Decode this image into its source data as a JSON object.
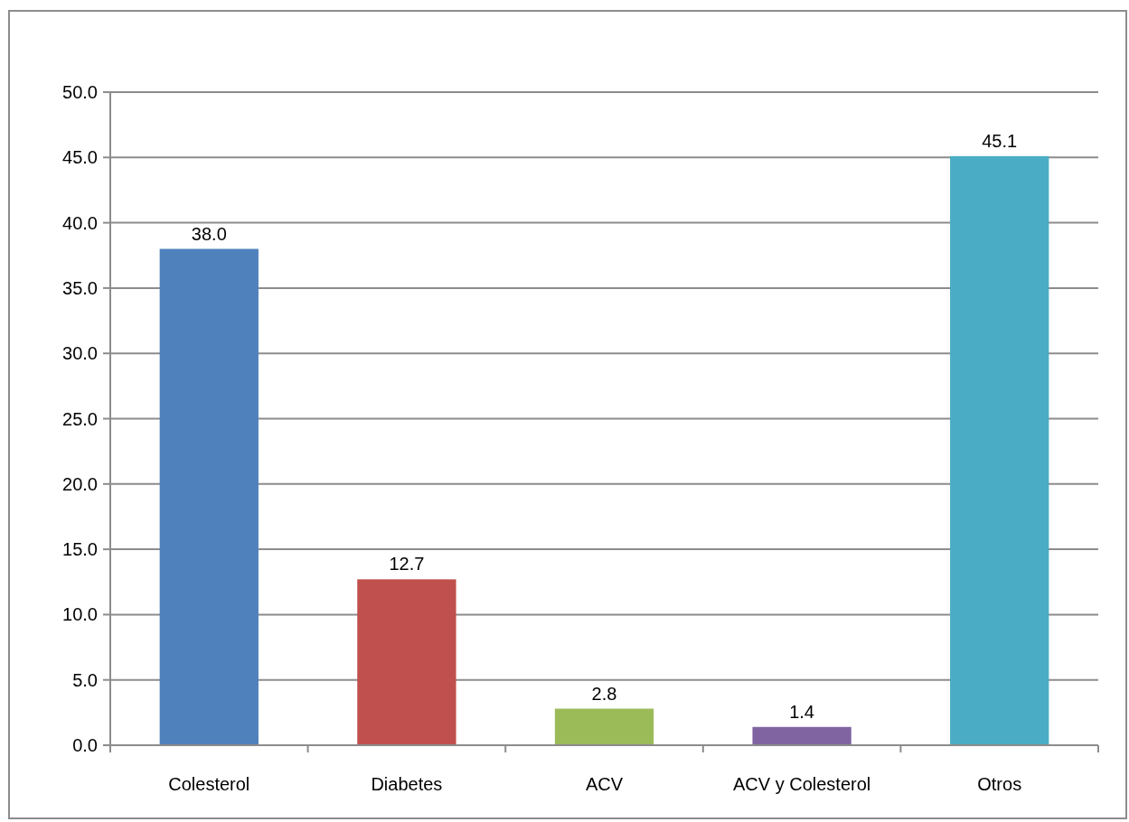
{
  "chart_data": {
    "type": "bar",
    "categories": [
      "Colesterol",
      "Diabetes",
      "ACV",
      "ACV y Colesterol",
      "Otros"
    ],
    "values": [
      38.0,
      12.7,
      2.8,
      1.4,
      45.1
    ],
    "colors": [
      "#4f81bd",
      "#c0504d",
      "#9bbb59",
      "#8064a2",
      "#4bacc6"
    ],
    "value_labels": [
      "38.0",
      "12.7",
      "2.8",
      "1.4",
      "45.1"
    ],
    "ylim": [
      0,
      50
    ],
    "yticks": [
      {
        "value": 0,
        "label": "0.0"
      },
      {
        "value": 5,
        "label": "5.0"
      },
      {
        "value": 10,
        "label": "10.0"
      },
      {
        "value": 15,
        "label": "15.0"
      },
      {
        "value": 20,
        "label": "20.0"
      },
      {
        "value": 25,
        "label": "25.0"
      },
      {
        "value": 30,
        "label": "30.0"
      },
      {
        "value": 35,
        "label": "35.0"
      },
      {
        "value": 40,
        "label": "40.0"
      },
      {
        "value": 45,
        "label": "45.0"
      },
      {
        "value": 50,
        "label": "50.0"
      }
    ],
    "grid": true
  }
}
